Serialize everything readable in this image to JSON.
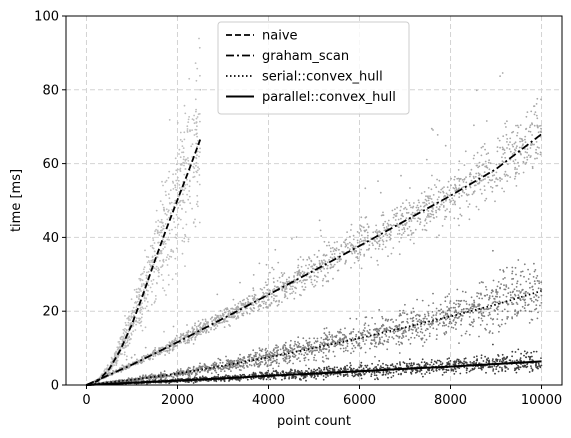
{
  "chart_data": {
    "type": "scatter",
    "xlabel": "point count",
    "ylabel": "time [ms]",
    "xlim": [
      -450,
      10450
    ],
    "ylim": [
      0,
      100
    ],
    "xticks": [
      0,
      2000,
      4000,
      6000,
      8000,
      10000
    ],
    "yticks": [
      0,
      20,
      40,
      60,
      80,
      100
    ],
    "grid": true,
    "legend_position": "upper-center",
    "series": [
      {
        "name": "naive",
        "line_style": "dashed",
        "scatter_color": "#bdbdbd",
        "x": [
          0,
          250,
          500,
          750,
          1000,
          1250,
          1500,
          1750,
          2000,
          2250,
          2500
        ],
        "y": [
          0,
          1.1,
          4.3,
          9.6,
          16.5,
          24.8,
          33.6,
          42.1,
          50.2,
          58.2,
          66.5
        ]
      },
      {
        "name": "graham_scan",
        "line_style": "dashdot",
        "scatter_color": "#a8a8a8",
        "x": [
          0,
          1000,
          2000,
          3000,
          4000,
          5000,
          6000,
          7000,
          8000,
          9000,
          10000
        ],
        "y": [
          0,
          5.5,
          11.6,
          18.0,
          24.5,
          31.0,
          37.7,
          44.5,
          51.3,
          58.5,
          68.0
        ]
      },
      {
        "name": "serial::convex_hull",
        "line_style": "dotted",
        "scatter_color": "#7d7d7d",
        "x": [
          0,
          1000,
          2000,
          3000,
          4000,
          5000,
          6000,
          7000,
          8000,
          9000,
          10000
        ],
        "y": [
          0,
          1.4,
          3.1,
          5.2,
          7.5,
          10.0,
          12.7,
          15.6,
          18.6,
          21.8,
          25.5
        ]
      },
      {
        "name": "parallel::convex_hull",
        "line_style": "solid",
        "scatter_color": "#3c3c3c",
        "x": [
          0,
          1000,
          2000,
          3000,
          4000,
          5000,
          6000,
          7000,
          8000,
          9000,
          10000
        ],
        "y": [
          0,
          0.6,
          1.2,
          1.8,
          2.5,
          3.1,
          3.7,
          4.4,
          5.0,
          5.7,
          6.4
        ]
      }
    ]
  }
}
